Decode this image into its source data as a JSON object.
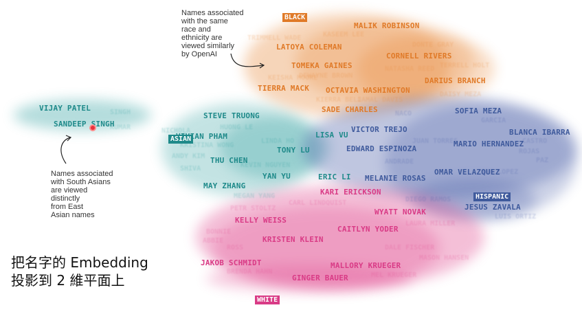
{
  "colors": {
    "black": "#e8893a",
    "asian": "#2a9d9d",
    "hispanic": "#4a5fa8",
    "white": "#e0498f",
    "asian_label": "#1f8a8a",
    "black_label": "#e07a28",
    "hispanic_label": "#3f5a9c",
    "white_label": "#d93b86"
  },
  "group_labels": {
    "black": "BLACK",
    "asian": "ASIAN",
    "hispanic": "HISPANIC",
    "white": "WHITE"
  },
  "names": {
    "black": [
      "MALIK ROBINSON",
      "LATOYA COLEMAN",
      "CORNELL RIVERS",
      "TOMEKA GAINES",
      "DARIUS BRANCH",
      "TIERRA MACK",
      "OCTAVIA WASHINGTON",
      "SADE CHARLES"
    ],
    "asian": [
      "VIJAY PATEL",
      "SANDEEP SINGH",
      "STEVE TRUONG",
      "VIVIAN PHAM",
      "TONY LU",
      "LISA VU",
      "THU CHEN",
      "YAN YU",
      "ERIC LI",
      "MAY ZHANG"
    ],
    "hispanic": [
      "SOFIA MEZA",
      "VICTOR TREJO",
      "BLANCA IBARRA",
      "EDWARD ESPINOZA",
      "MARIO HERNANDEZ",
      "OMAR VELAZQUEZ",
      "MELANIE ROSAS",
      "JESUS ZAVALA"
    ],
    "white": [
      "KARI ERICKSON",
      "WYATT NOVAK",
      "KELLY WEISS",
      "CAITLYN YODER",
      "KRISTEN KLEIN",
      "JAKOB SCHMIDT",
      "MALLORY KRUEGER",
      "GINGER BAUER"
    ]
  },
  "annotations": {
    "openai_note": "Names associated\nwith the same\nrace and\nethnicity are\nviewed similarly\nby OpenAI",
    "south_asian_note": "Names associated\nwith South Asians\nare viewed\ndistinctly\nfrom East\nAsian names"
  },
  "caption": "把名字的 Embedding\n投影到 2 維平面上"
}
